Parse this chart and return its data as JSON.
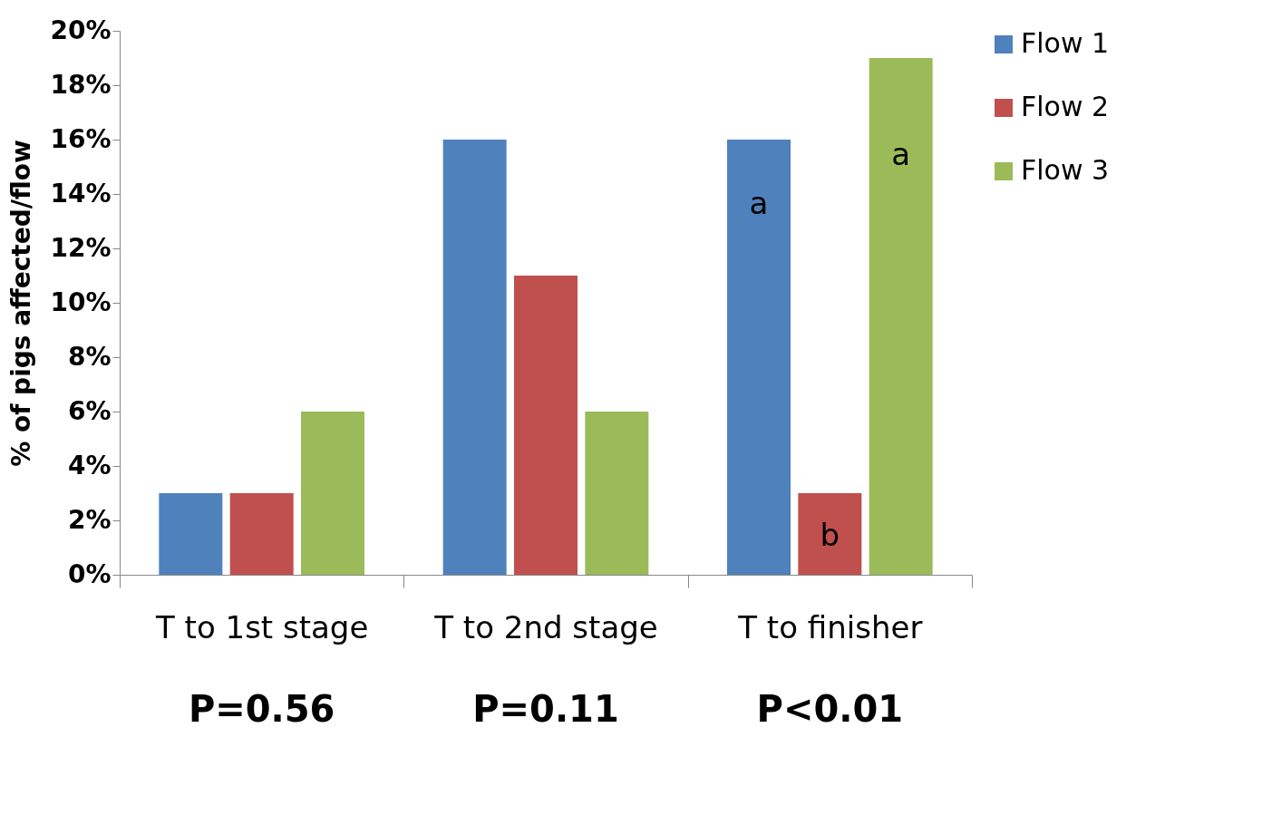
{
  "chart_data": {
    "type": "bar",
    "categories": [
      "T to 1st stage",
      "T to 2nd stage",
      "T to finisher"
    ],
    "series": [
      {
        "name": "Flow 1",
        "color": "#4f81bd",
        "values": [
          3,
          16,
          16
        ]
      },
      {
        "name": "Flow 2",
        "color": "#c0504d",
        "values": [
          3,
          11,
          3
        ]
      },
      {
        "name": "Flow 3",
        "color": "#9bbb59",
        "values": [
          6,
          6,
          19
        ]
      }
    ],
    "ylabel": "% of pigs affected/flow",
    "ylim": [
      0,
      20
    ],
    "yticks": [
      {
        "value": 0,
        "label": "0%"
      },
      {
        "value": 2,
        "label": "2%"
      },
      {
        "value": 4,
        "label": "4%"
      },
      {
        "value": 6,
        "label": "6%"
      },
      {
        "value": 8,
        "label": "8%"
      },
      {
        "value": 10,
        "label": "10%"
      },
      {
        "value": 12,
        "label": "12%"
      },
      {
        "value": 14,
        "label": "14%"
      },
      {
        "value": 16,
        "label": "16%"
      },
      {
        "value": 18,
        "label": "18%"
      },
      {
        "value": 20,
        "label": "20%"
      }
    ],
    "annotations": [
      "P=0.56",
      "P=0.11",
      "P<0.01",
      "a",
      "a",
      "b"
    ],
    "grid": false,
    "legend": "right"
  }
}
